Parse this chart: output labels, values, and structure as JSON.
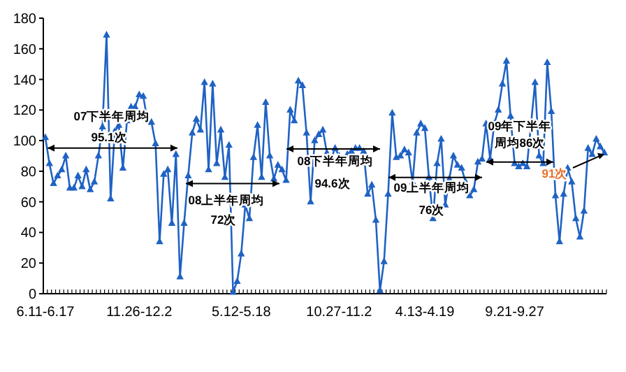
{
  "chart_data": {
    "type": "line",
    "marker": "triangle",
    "grid": false,
    "color": "#1f62c4",
    "categories": [
      "6.11-6.17",
      null,
      null,
      null,
      null,
      null,
      null,
      null,
      null,
      null,
      null,
      null,
      null,
      null,
      null,
      null,
      null,
      null,
      null,
      null,
      null,
      null,
      null,
      "11.26-12.2",
      null,
      null,
      null,
      null,
      null,
      null,
      null,
      null,
      null,
      null,
      null,
      null,
      null,
      null,
      null,
      null,
      null,
      null,
      null,
      null,
      null,
      null,
      null,
      null,
      "5.12-5.18",
      null,
      null,
      null,
      null,
      null,
      null,
      null,
      null,
      null,
      null,
      null,
      null,
      null,
      null,
      null,
      null,
      null,
      null,
      null,
      null,
      null,
      null,
      null,
      "10.27-11.2",
      null,
      null,
      null,
      null,
      null,
      null,
      null,
      null,
      null,
      null,
      null,
      null,
      null,
      null,
      null,
      null,
      null,
      null,
      null,
      null,
      "4.13-4.19",
      null,
      null,
      null,
      null,
      null,
      null,
      null,
      null,
      null,
      null,
      null,
      null,
      null,
      null,
      null,
      null,
      null,
      null,
      null,
      null,
      null,
      "9.21-9.27",
      null,
      null,
      null,
      null,
      null,
      null,
      null,
      null,
      null,
      null,
      null,
      null,
      null,
      null,
      null,
      null,
      null,
      null,
      null,
      null,
      null,
      null
    ],
    "values": [
      102,
      85,
      72,
      77,
      81,
      90,
      69,
      69,
      77,
      70,
      81,
      68,
      73,
      90,
      109,
      169,
      62,
      106,
      110,
      82,
      113,
      122,
      122,
      130,
      129,
      113,
      112,
      98,
      34,
      78,
      81,
      46,
      91,
      11,
      46,
      77,
      105,
      114,
      107,
      138,
      81,
      137,
      85,
      107,
      76,
      97,
      1,
      8,
      26,
      58,
      49,
      89,
      110,
      76,
      125,
      90,
      75,
      84,
      81,
      74,
      120,
      113,
      139,
      136,
      105,
      60,
      100,
      104,
      107,
      92,
      88,
      95,
      90,
      86,
      91,
      93,
      95,
      95,
      93,
      65,
      71,
      48,
      2,
      21,
      65,
      118,
      89,
      90,
      94,
      92,
      73,
      105,
      111,
      108,
      76,
      49,
      85,
      101,
      58,
      75,
      90,
      84,
      82,
      73,
      64,
      68,
      86,
      88,
      111,
      88,
      111,
      120,
      137,
      152,
      116,
      85,
      83,
      85,
      83,
      110,
      138,
      90,
      85,
      151,
      119,
      64,
      34,
      65,
      82,
      73,
      49,
      37,
      54,
      95,
      91,
      101,
      96,
      92
    ],
    "ylim": [
      0,
      180
    ],
    "yticks": [
      0,
      20,
      40,
      60,
      80,
      100,
      120,
      140,
      160,
      180
    ],
    "annotations": [
      "07下半年周均",
      {
        "text": "95.1次",
        "y": 95.1
      },
      "08上半年周均",
      {
        "text": "72次",
        "y": 72
      },
      "08下半年周均",
      {
        "text": "94.6次",
        "y": 94.6
      },
      "09上半年周均",
      {
        "text": "76次",
        "y": 76
      },
      "09年下半年",
      {
        "text": "周均86次",
        "y": 86
      },
      {
        "text": "91次",
        "y": 91
      }
    ]
  }
}
